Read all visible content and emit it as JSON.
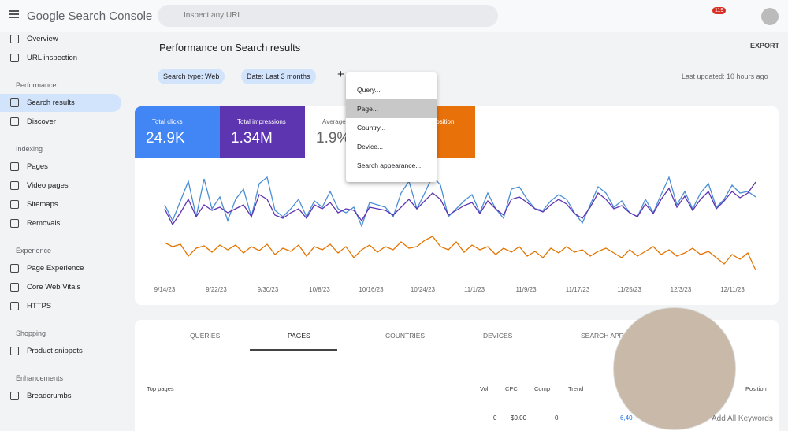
{
  "header": {
    "app": "Google Search Console",
    "search_placeholder": "Inspect any URL",
    "notifications": "119"
  },
  "sidebar": {
    "items": [
      {
        "kind": "item",
        "label": "Overview",
        "icon": "home"
      },
      {
        "kind": "item",
        "label": "URL inspection",
        "icon": "search"
      },
      {
        "kind": "section",
        "label": "Performance"
      },
      {
        "kind": "item",
        "label": "Search results",
        "icon": "G",
        "active": true
      },
      {
        "kind": "item",
        "label": "Discover",
        "icon": "star"
      },
      {
        "kind": "section",
        "label": "Indexing"
      },
      {
        "kind": "item",
        "label": "Pages",
        "icon": "page"
      },
      {
        "kind": "item",
        "label": "Video pages",
        "icon": "page"
      },
      {
        "kind": "item",
        "label": "Sitemaps",
        "icon": "tree"
      },
      {
        "kind": "item",
        "label": "Removals",
        "icon": "eye"
      },
      {
        "kind": "section",
        "label": "Experience"
      },
      {
        "kind": "item",
        "label": "Page Experience",
        "icon": "plus"
      },
      {
        "kind": "item",
        "label": "Core Web Vitals",
        "icon": "gauge"
      },
      {
        "kind": "item",
        "label": "HTTPS",
        "icon": "lock"
      },
      {
        "kind": "section",
        "label": "Shopping"
      },
      {
        "kind": "item",
        "label": "Product snippets",
        "icon": "layers"
      },
      {
        "kind": "section",
        "label": "Enhancements"
      },
      {
        "kind": "item",
        "label": "Breadcrumbs",
        "icon": "layers"
      }
    ]
  },
  "page": {
    "title": "Performance on Search results",
    "export": "EXPORT",
    "filters": [
      "Search type: Web",
      "Date: Last 3 months"
    ],
    "last_updated": "Last updated: 10 hours ago"
  },
  "metrics": [
    {
      "label": "Total clicks",
      "value": "24.9K"
    },
    {
      "label": "Total impressions",
      "value": "1.34M"
    },
    {
      "label": "Average CTR",
      "value": "1.9%"
    },
    {
      "label": "Average position"
    }
  ],
  "menu": [
    "Query...",
    "Page...",
    "Country...",
    "Device...",
    "Search appearance..."
  ],
  "chart": {
    "x_labels": [
      "9/14/23",
      "9/22/23",
      "9/30/23",
      "10/8/23",
      "10/16/23",
      "10/24/23",
      "11/1/23",
      "11/9/23",
      "11/17/23",
      "11/25/23",
      "12/3/23",
      "12/11/23"
    ]
  },
  "tabs": [
    "QUERIES",
    "PAGES",
    "COUNTRIES",
    "DEVICES",
    "SEARCH APPEARANCE"
  ],
  "table": {
    "headers": [
      "Top pages",
      "Vol",
      "CPC",
      "Comp",
      "Trend",
      "Position"
    ],
    "row": [
      "0",
      "$0.00",
      "0",
      "6,40"
    ],
    "action": "Add All Keywords"
  }
}
